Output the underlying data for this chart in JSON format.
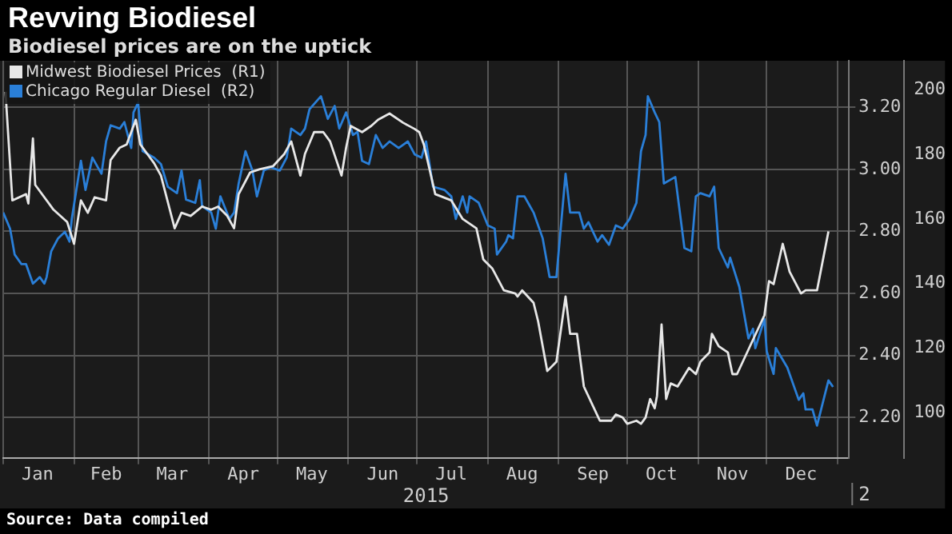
{
  "chart_data": {
    "type": "line",
    "title": "Revving Biodiesel",
    "subtitle": "Biodiesel prices are on the uptick",
    "xlabel": "2015",
    "annotations": [
      "2",
      "Source: Data compiled"
    ],
    "xlim": [
      "2015-01-01",
      "2016-01-06"
    ],
    "xticks": [
      {
        "value": "2015-01-01",
        "label": null
      },
      {
        "value": "2015-01-16",
        "label": "Jan"
      },
      {
        "value": "2015-02-01",
        "label": null
      },
      {
        "value": "2015-02-15",
        "label": "Feb"
      },
      {
        "value": "2015-03-01",
        "label": null
      },
      {
        "value": "2015-03-16",
        "label": "Mar"
      },
      {
        "value": "2015-04-01",
        "label": null
      },
      {
        "value": "2015-04-16",
        "label": "Apr"
      },
      {
        "value": "2015-05-01",
        "label": null
      },
      {
        "value": "2015-05-16",
        "label": "May"
      },
      {
        "value": "2015-06-01",
        "label": null
      },
      {
        "value": "2015-06-16",
        "label": "Jun"
      },
      {
        "value": "2015-07-01",
        "label": null
      },
      {
        "value": "2015-07-16",
        "label": "Jul"
      },
      {
        "value": "2015-08-01",
        "label": null
      },
      {
        "value": "2015-08-16",
        "label": "Aug"
      },
      {
        "value": "2015-09-01",
        "label": null
      },
      {
        "value": "2015-09-16",
        "label": "Sep"
      },
      {
        "value": "2015-10-01",
        "label": null
      },
      {
        "value": "2015-10-16",
        "label": "Oct"
      },
      {
        "value": "2015-11-01",
        "label": null
      },
      {
        "value": "2015-11-16",
        "label": "Nov"
      },
      {
        "value": "2015-12-01",
        "label": null
      },
      {
        "value": "2015-12-16",
        "label": "Dec"
      },
      {
        "value": "2016-01-01",
        "label": null
      }
    ],
    "ylim": [
      2.07,
      3.35
    ],
    "yticks": [
      {
        "value": 2.2,
        "label": "2.20"
      },
      {
        "value": 2.4,
        "label": "2.40"
      },
      {
        "value": 2.6,
        "label": "2.60"
      },
      {
        "value": 2.8,
        "label": "2.80"
      },
      {
        "value": 3.0,
        "label": "3.00"
      },
      {
        "value": 3.2,
        "label": "3.20"
      }
    ],
    "y2lim": [
      86,
      209
    ],
    "y2ticks": [
      100,
      120,
      140,
      160,
      180,
      200
    ],
    "grid": true,
    "legend": "top left",
    "marker": "none",
    "line_style": "solid",
    "series": [
      {
        "name": "Midwest Biodiesel Prices  (R1)",
        "color": "#e8e8e8",
        "x": [
          "2015-01-02",
          "2015-01-05",
          "2015-01-11",
          "2015-01-12",
          "2015-01-14",
          "2015-01-15",
          "2015-01-23",
          "2015-01-29",
          "2015-02-01",
          "2015-02-04",
          "2015-02-07",
          "2015-02-10",
          "2015-02-15",
          "2015-02-17",
          "2015-02-21",
          "2015-02-24",
          "2015-02-26",
          "2015-02-28",
          "2015-03-02",
          "2015-03-08",
          "2015-03-11",
          "2015-03-17",
          "2015-03-20",
          "2015-03-24",
          "2015-03-29",
          "2015-04-02",
          "2015-04-05",
          "2015-04-09",
          "2015-04-12",
          "2015-04-14",
          "2015-04-19",
          "2015-04-23",
          "2015-04-29",
          "2015-05-04",
          "2015-05-07",
          "2015-05-11",
          "2015-05-13",
          "2015-05-17",
          "2015-05-21",
          "2015-05-24",
          "2015-05-29",
          "2015-05-31",
          "2015-06-02",
          "2015-06-07",
          "2015-06-11",
          "2015-06-14",
          "2015-06-19",
          "2015-06-25",
          "2015-06-30",
          "2015-07-02",
          "2015-07-04",
          "2015-07-09",
          "2015-07-16",
          "2015-07-21",
          "2015-07-27",
          "2015-07-30",
          "2015-08-03",
          "2015-08-08",
          "2015-08-13",
          "2015-08-14",
          "2015-08-16",
          "2015-08-21",
          "2015-08-23",
          "2015-08-27",
          "2015-08-31",
          "2015-09-04",
          "2015-09-06",
          "2015-09-09",
          "2015-09-12",
          "2015-09-19",
          "2015-09-24",
          "2015-09-26",
          "2015-09-29",
          "2015-10-01",
          "2015-10-05",
          "2015-10-07",
          "2015-10-09",
          "2015-10-11",
          "2015-10-13",
          "2015-10-14",
          "2015-10-16",
          "2015-10-18",
          "2015-10-20",
          "2015-10-23",
          "2015-10-28",
          "2015-10-31",
          "2015-11-02",
          "2015-11-06",
          "2015-11-07",
          "2015-11-10",
          "2015-11-14",
          "2015-11-16",
          "2015-11-18",
          "2015-11-30",
          "2015-12-02",
          "2015-12-04",
          "2015-12-08",
          "2015-12-11",
          "2015-12-16",
          "2015-12-18",
          "2015-12-23",
          "2015-12-28"
        ],
        "values": [
          3.25,
          2.9,
          2.92,
          2.89,
          3.1,
          2.95,
          2.87,
          2.83,
          2.76,
          2.9,
          2.86,
          2.91,
          2.9,
          3.03,
          3.07,
          3.08,
          3.12,
          3.16,
          3.08,
          3.02,
          2.98,
          2.81,
          2.86,
          2.85,
          2.88,
          2.87,
          2.88,
          2.85,
          2.81,
          2.92,
          2.99,
          3.0,
          3.01,
          3.05,
          3.09,
          2.98,
          3.05,
          3.12,
          3.12,
          3.09,
          2.98,
          3.07,
          3.14,
          3.12,
          3.14,
          3.16,
          3.18,
          3.15,
          3.13,
          3.12,
          3.08,
          2.92,
          2.9,
          2.84,
          2.81,
          2.71,
          2.68,
          2.61,
          2.6,
          2.59,
          2.61,
          2.57,
          2.51,
          2.35,
          2.38,
          2.59,
          2.47,
          2.47,
          2.3,
          2.19,
          2.19,
          2.21,
          2.2,
          2.18,
          2.19,
          2.18,
          2.2,
          2.26,
          2.23,
          2.27,
          2.5,
          2.26,
          2.31,
          2.3,
          2.36,
          2.34,
          2.38,
          2.41,
          2.47,
          2.43,
          2.41,
          2.34,
          2.34,
          2.53,
          2.64,
          2.63,
          2.76,
          2.67,
          2.6,
          2.61,
          2.61,
          2.8
        ]
      },
      {
        "name": "Chicago Regular Diesel  (R2)",
        "color": "#2a7fd8",
        "axis": "y2",
        "x": [
          "2015-01-01",
          "2015-01-04",
          "2015-01-06",
          "2015-01-09",
          "2015-01-11",
          "2015-01-14",
          "2015-01-17",
          "2015-01-19",
          "2015-01-20",
          "2015-01-22",
          "2015-01-25",
          "2015-01-28",
          "2015-01-30",
          "2015-01-31",
          "2015-02-04",
          "2015-02-06",
          "2015-02-09",
          "2015-02-13",
          "2015-02-15",
          "2015-02-17",
          "2015-02-21",
          "2015-02-23",
          "2015-02-26",
          "2015-02-27",
          "2015-03-01",
          "2015-03-03",
          "2015-03-08",
          "2015-03-11",
          "2015-03-14",
          "2015-03-18",
          "2015-03-20",
          "2015-03-22",
          "2015-03-26",
          "2015-03-28",
          "2015-03-29",
          "2015-04-02",
          "2015-04-04",
          "2015-04-06",
          "2015-04-10",
          "2015-04-12",
          "2015-04-14",
          "2015-04-17",
          "2015-04-20",
          "2015-04-22",
          "2015-04-25",
          "2015-04-28",
          "2015-05-02",
          "2015-05-05",
          "2015-05-07",
          "2015-05-11",
          "2015-05-13",
          "2015-05-15",
          "2015-05-20",
          "2015-05-23",
          "2015-05-26",
          "2015-05-28",
          "2015-05-31",
          "2015-06-03",
          "2015-06-05",
          "2015-06-07",
          "2015-06-10",
          "2015-06-13",
          "2015-06-16",
          "2015-06-19",
          "2015-06-23",
          "2015-06-27",
          "2015-06-30",
          "2015-07-03",
          "2015-07-05",
          "2015-07-08",
          "2015-07-13",
          "2015-07-16",
          "2015-07-18",
          "2015-07-21",
          "2015-07-23",
          "2015-07-24",
          "2015-07-28",
          "2015-08-01",
          "2015-08-04",
          "2015-08-05",
          "2015-08-09",
          "2015-08-10",
          "2015-08-12",
          "2015-08-14",
          "2015-08-17",
          "2015-08-21",
          "2015-08-25",
          "2015-08-28",
          "2015-08-31",
          "2015-09-04",
          "2015-09-06",
          "2015-09-10",
          "2015-09-12",
          "2015-09-14",
          "2015-09-18",
          "2015-09-20",
          "2015-09-23",
          "2015-09-26",
          "2015-09-29",
          "2015-10-02",
          "2015-10-05",
          "2015-10-07",
          "2015-10-09",
          "2015-10-10",
          "2015-10-13",
          "2015-10-15",
          "2015-10-17",
          "2015-10-22",
          "2015-10-26",
          "2015-10-29",
          "2015-10-31",
          "2015-11-02",
          "2015-11-06",
          "2015-11-08",
          "2015-11-10",
          "2015-11-14",
          "2015-11-15",
          "2015-11-19",
          "2015-11-23",
          "2015-11-25",
          "2015-11-26",
          "2015-11-30",
          "2015-12-01",
          "2015-12-04",
          "2015-12-05",
          "2015-12-10",
          "2015-12-15",
          "2015-12-17",
          "2015-12-18",
          "2015-12-21",
          "2015-12-23",
          "2015-12-28",
          "2015-12-30"
        ],
        "values": [
          162,
          157,
          149,
          146,
          146,
          140,
          142,
          140,
          142,
          150,
          154,
          156,
          153,
          160,
          178,
          169,
          179,
          174,
          184,
          189,
          188,
          190,
          182,
          193,
          196,
          181,
          179,
          177,
          170,
          168,
          175,
          166,
          165,
          172,
          164,
          162,
          157,
          167,
          160,
          162,
          171,
          181,
          175,
          167,
          175,
          176,
          175,
          179,
          188,
          186,
          188,
          194,
          198,
          191,
          195,
          188,
          193,
          186,
          187,
          178,
          177,
          186,
          182,
          184,
          182,
          184,
          180,
          179,
          184,
          170,
          169,
          167,
          160,
          167,
          162,
          167,
          165,
          158,
          157,
          149,
          153,
          155,
          154,
          167,
          167,
          162,
          154,
          142,
          142,
          174,
          162,
          162,
          157,
          159,
          153,
          155,
          152,
          158,
          157,
          160,
          165,
          181,
          186,
          198,
          193,
          190,
          171,
          173,
          151,
          150,
          167,
          168,
          167,
          170,
          151,
          145,
          148,
          139,
          123,
          126,
          120,
          129,
          119,
          112,
          120,
          114,
          104,
          106,
          101,
          101,
          96,
          110,
          108
        ]
      }
    ]
  }
}
